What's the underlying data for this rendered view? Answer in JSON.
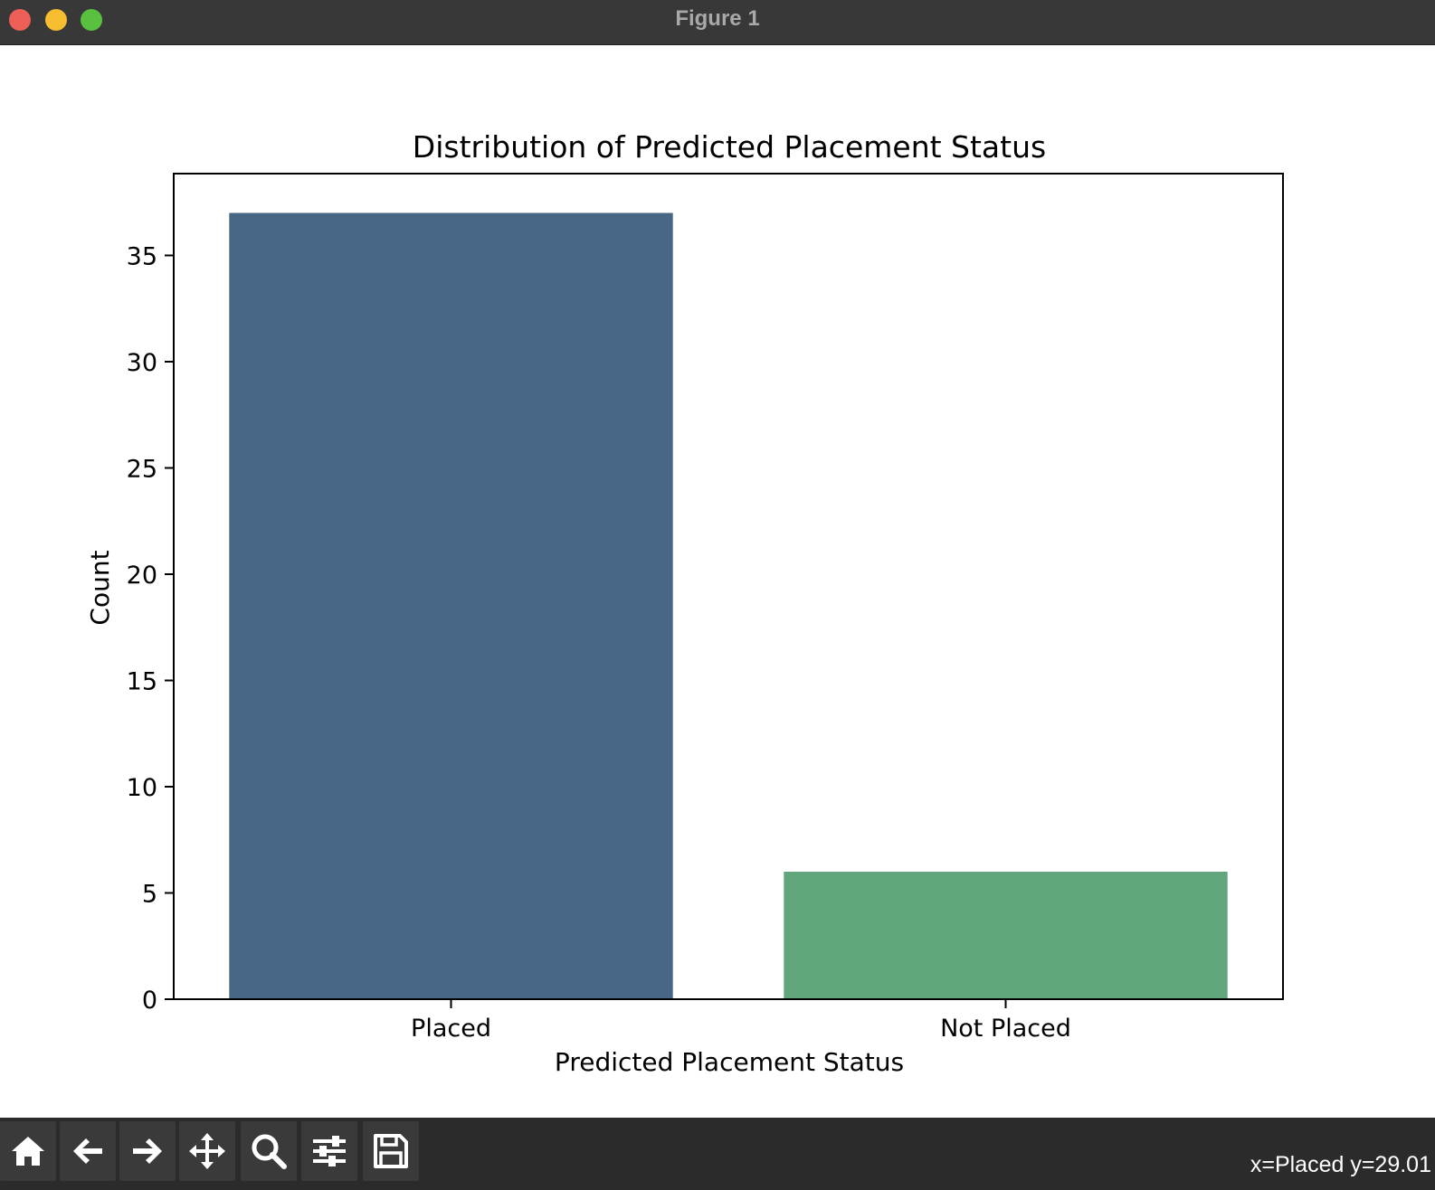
{
  "window": {
    "title": "Figure 1"
  },
  "chart_data": {
    "type": "bar",
    "title": "Distribution of Predicted Placement Status",
    "xlabel": "Predicted Placement Status",
    "ylabel": "Count",
    "categories": [
      "Placed",
      "Not Placed"
    ],
    "values": [
      37,
      6
    ],
    "colors": [
      "#476784",
      "#60a57c"
    ],
    "ylim": [
      0,
      38.85
    ],
    "yticks": [
      0,
      5,
      10,
      15,
      20,
      25,
      30,
      35
    ],
    "grid": false
  },
  "toolbar": {
    "tools": [
      "home-icon",
      "back-icon",
      "forward-icon",
      "pan-icon",
      "zoom-icon",
      "configure-subplots-icon",
      "save-icon"
    ],
    "coordinates": "x=Placed y=29.01"
  }
}
